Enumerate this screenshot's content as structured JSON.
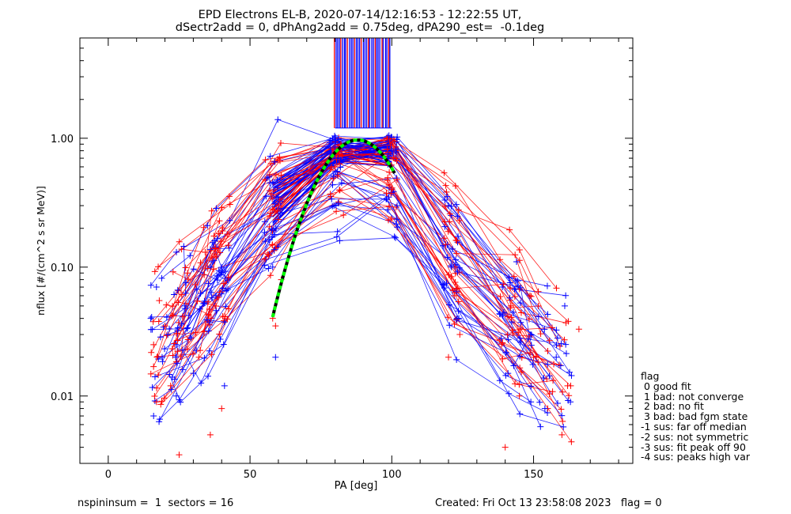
{
  "title": {
    "line1": "EPD Electrons EL-B, 2020-07-14/12:16:53 - 12:22:55 UT,",
    "line2": "dSectr2add = 0, dPhAng2add = 0.75deg, dPA290_est=  -0.1deg"
  },
  "legend": {
    "header": "flag",
    "items": [
      " 0 good fit",
      " 1 bad: not converge",
      " 2 bad: no fit",
      " 3 bad: bad fgm state",
      "-1 sus: far off median",
      "-2 sus: not symmetric",
      "-3 sus: fit peak off 90",
      "-4 sus: peaks high var"
    ]
  },
  "footer": {
    "left": "nspininsum =  1  sectors = 16",
    "right": "Created: Fri Oct 13 23:58:08 2023   flag = 0"
  },
  "colors": {
    "red": "#ff0000",
    "blue": "#0000ff",
    "fit": "#00ff00",
    "axis": "#000000"
  },
  "chart_data": {
    "type": "scatter",
    "xlabel": "PA [deg]",
    "ylabel": "nflux [#/(cm^2 s sr MeV)]",
    "xlim": [
      -10,
      185
    ],
    "ylim": [
      0.003,
      6
    ],
    "yscale": "log",
    "x_ticks": [
      "0",
      "50",
      "100",
      "150"
    ],
    "x_tick_values": [
      0,
      50,
      100,
      150
    ],
    "y_ticks": [
      "0.01",
      "0.10",
      "1.00"
    ],
    "y_tick_values": [
      0.01,
      0.1,
      1.0
    ],
    "grid": false,
    "series": [
      {
        "color": "red",
        "marker": "+",
        "x": [
          16,
          17,
          18,
          20,
          22,
          25,
          28,
          32,
          36,
          38,
          40,
          57,
          58,
          59,
          60,
          61,
          80,
          82,
          100,
          101,
          119,
          120,
          122,
          124,
          140,
          142,
          145,
          150,
          155,
          160,
          162,
          166
        ],
        "y": [
          0.025,
          0.009,
          0.055,
          0.035,
          0.012,
          0.0035,
          0.09,
          0.02,
          0.005,
          0.12,
          0.008,
          0.25,
          0.04,
          0.035,
          0.3,
          0.08,
          0.6,
          0.9,
          0.4,
          0.95,
          0.15,
          0.02,
          0.06,
          0.03,
          0.004,
          0.05,
          0.01,
          0.02,
          0.008,
          0.005,
          0.012,
          0.033
        ]
      },
      {
        "color": "blue",
        "marker": "+",
        "x": [
          15,
          16,
          17,
          19,
          21,
          24,
          27,
          30,
          35,
          38,
          41,
          57,
          58,
          59,
          60,
          80,
          81,
          99,
          100,
          120,
          121,
          123,
          139,
          141,
          144,
          149,
          154,
          158,
          161,
          163
        ],
        "y": [
          0.04,
          0.007,
          0.07,
          0.02,
          0.03,
          0.01,
          0.05,
          0.015,
          0.21,
          0.06,
          0.012,
          0.45,
          0.1,
          0.02,
          0.35,
          0.95,
          0.7,
          1.05,
          0.8,
          0.3,
          0.1,
          0.04,
          0.07,
          0.015,
          0.11,
          0.03,
          0.008,
          0.02,
          0.05,
          0.009
        ]
      }
    ],
    "fit": {
      "color": "fit",
      "style": "dashed",
      "x_range": [
        58,
        101
      ],
      "peak": 0.97,
      "peak_x": 88
    }
  }
}
